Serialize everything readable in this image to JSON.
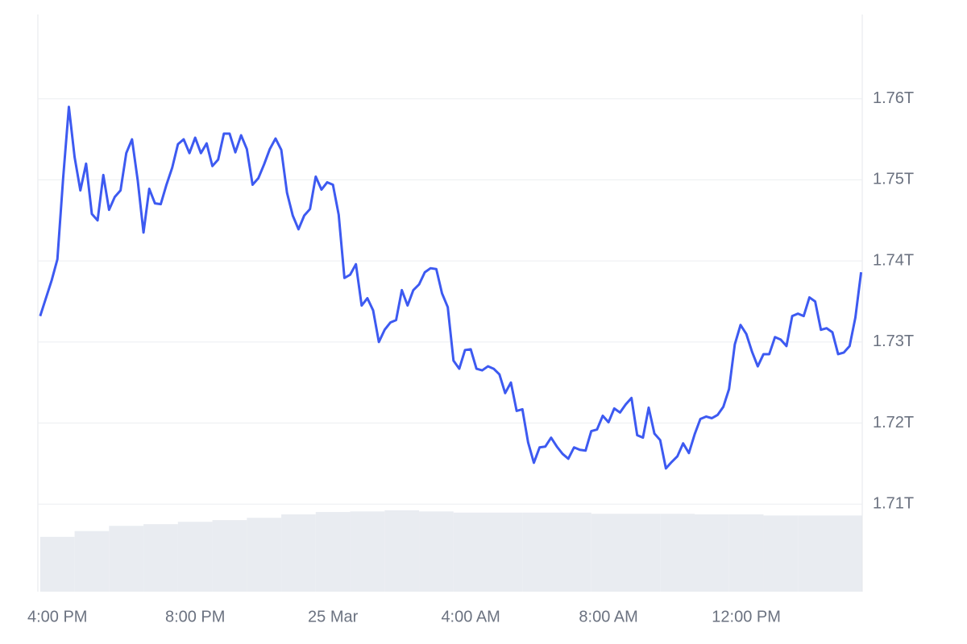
{
  "chart_data": {
    "type": "line",
    "x": [
      930,
      940,
      950,
      960,
      970,
      980,
      990,
      1000,
      1010,
      1020,
      1030,
      1040,
      1050,
      1060,
      1070,
      1080,
      1090,
      1100,
      1110,
      1120,
      1130,
      1140,
      1150,
      1160,
      1170,
      1180,
      1190,
      1200,
      1210,
      1220,
      1230,
      1240,
      1250,
      1260,
      1270,
      1280,
      1290,
      1300,
      1310,
      1320,
      1330,
      1340,
      1350,
      1360,
      1370,
      1380,
      1390,
      1400,
      1410,
      1420,
      1430,
      1440,
      1450,
      1460,
      1470,
      1480,
      1490,
      1500,
      1510,
      1520,
      1530,
      1540,
      1550,
      1560,
      1570,
      1580,
      1590,
      1600,
      1610,
      1620,
      1630,
      1640,
      1650,
      1660,
      1670,
      1680,
      1690,
      1700,
      1710,
      1720,
      1730,
      1740,
      1750,
      1760,
      1770,
      1780,
      1790,
      1800,
      1810,
      1820,
      1830,
      1840,
      1850,
      1860,
      1870,
      1880,
      1890,
      1900,
      1910,
      1920,
      1930,
      1940,
      1950,
      1960,
      1970,
      1980,
      1990,
      2000,
      2010,
      2020,
      2030,
      2040,
      2050,
      2060,
      2070,
      2080,
      2090,
      2100,
      2110,
      2120,
      2130,
      2140,
      2150,
      2160,
      2170,
      2180,
      2190,
      2200,
      2210,
      2220,
      2230,
      2240,
      2250,
      2260,
      2270,
      2280,
      2290,
      2300,
      2310,
      2320,
      2330,
      2340,
      2350,
      2360
    ],
    "series": [
      {
        "color": "#3d5af1",
        "values": [
          1.7332,
          1.7354,
          1.7376,
          1.7402,
          1.7502,
          1.759,
          1.7528,
          1.7487,
          1.752,
          1.7458,
          1.745,
          1.7506,
          1.7463,
          1.7479,
          1.7487,
          1.7533,
          1.755,
          1.7499,
          1.7435,
          1.7489,
          1.7471,
          1.747,
          1.7494,
          1.7515,
          1.7544,
          1.755,
          1.7533,
          1.7552,
          1.7533,
          1.7545,
          1.7517,
          1.7525,
          1.7557,
          1.7557,
          1.7534,
          1.7555,
          1.7538,
          1.7494,
          1.7502,
          1.7519,
          1.7538,
          1.7551,
          1.7537,
          1.7484,
          1.7456,
          1.7439,
          1.7456,
          1.7464,
          1.7504,
          1.7488,
          1.7497,
          1.7494,
          1.7457,
          1.7379,
          1.7383,
          1.7396,
          1.7345,
          1.7354,
          1.7339,
          1.73,
          1.7315,
          1.7324,
          1.7327,
          1.7364,
          1.7345,
          1.7364,
          1.7371,
          1.7386,
          1.7391,
          1.739,
          1.736,
          1.7343,
          1.7277,
          1.7267,
          1.729,
          1.7291,
          1.7267,
          1.7265,
          1.727,
          1.7267,
          1.726,
          1.7237,
          1.725,
          1.7215,
          1.7217,
          1.7176,
          1.7151,
          1.717,
          1.7171,
          1.7182,
          1.7171,
          1.7162,
          1.7156,
          1.717,
          1.7167,
          1.7166,
          1.719,
          1.7192,
          1.7209,
          1.7201,
          1.7218,
          1.7213,
          1.7223,
          1.7231,
          1.7185,
          1.7182,
          1.7219,
          1.7187,
          1.7179,
          1.7144,
          1.7152,
          1.7159,
          1.7175,
          1.7163,
          1.7186,
          1.7205,
          1.7208,
          1.7206,
          1.721,
          1.722,
          1.7242,
          1.7297,
          1.7321,
          1.731,
          1.7288,
          1.727,
          1.7285,
          1.7285,
          1.7306,
          1.7303,
          1.7295,
          1.7332,
          1.7335,
          1.7332,
          1.7355,
          1.735,
          1.7315,
          1.7317,
          1.7312,
          1.7285,
          1.7287,
          1.7295,
          1.733,
          1.7386
        ]
      }
    ],
    "xlim": [
      926,
      2362
    ],
    "xticks": [
      {
        "value": 960,
        "label": "4:00 PM"
      },
      {
        "value": 1200,
        "label": "8:00 PM"
      },
      {
        "value": 1440,
        "label": "25 Mar"
      },
      {
        "value": 1680,
        "label": "4:00 AM"
      },
      {
        "value": 1920,
        "label": "8:00 AM"
      },
      {
        "value": 2160,
        "label": "12:00 PM"
      }
    ],
    "ylim": [
      1.6992,
      1.7704
    ],
    "yticks": [
      {
        "value": 1.71,
        "label": "1.71T"
      },
      {
        "value": 1.72,
        "label": "1.72T"
      },
      {
        "value": 1.73,
        "label": "1.73T"
      },
      {
        "value": 1.74,
        "label": "1.74T"
      },
      {
        "value": 1.75,
        "label": "1.75T"
      },
      {
        "value": 1.76,
        "label": "1.76T"
      }
    ],
    "grid": true,
    "volume": {
      "color": "#e9ecf1",
      "axis": "y2",
      "x": [
        930,
        990,
        1050,
        1110,
        1170,
        1230,
        1290,
        1350,
        1410,
        1470,
        1530,
        1590,
        1650,
        1710,
        1770,
        1830,
        1890,
        1950,
        2010,
        2070,
        2130,
        2190,
        2250,
        2310
      ],
      "values": [
        9.5,
        10.5,
        11.4,
        11.7,
        12.1,
        12.4,
        12.8,
        13.4,
        13.8,
        13.9,
        14.1,
        13.9,
        13.7,
        13.7,
        13.7,
        13.7,
        13.5,
        13.5,
        13.5,
        13.4,
        13.4,
        13.2,
        13.2,
        13.2
      ]
    },
    "y2lim": [
      0,
      100
    ]
  }
}
